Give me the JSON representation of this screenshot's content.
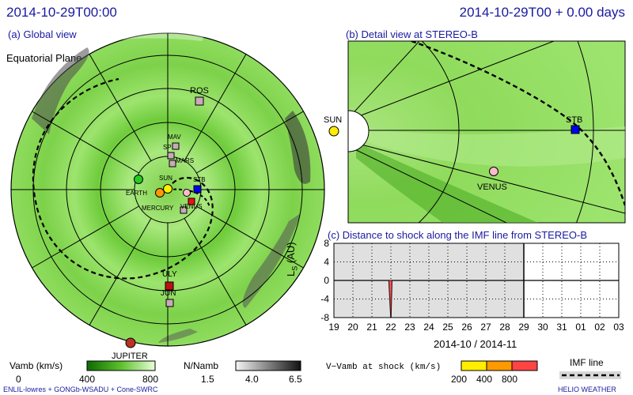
{
  "header": {
    "timestamp_left": "2014-10-29T00:00",
    "timestamp_right": "2014-10-29T00 + 0.00 days"
  },
  "panel_a": {
    "title": "(a) Global view",
    "plane_label": "Equatorial Plane",
    "objects": [
      {
        "label": "ROS",
        "color": "#c8aab8"
      },
      {
        "label": "MAV",
        "color": "#c8aab8"
      },
      {
        "label": "SP",
        "color": "#c8aab8"
      },
      {
        "label": "MARS",
        "color": "#c8aab8"
      },
      {
        "label": "SUN",
        "color": "#ffee00"
      },
      {
        "label": "STB",
        "color": "#0000ee"
      },
      {
        "label": "EARTH",
        "color": "#ff9900"
      },
      {
        "label": "MERCURY",
        "color": "#c8aab8"
      },
      {
        "label": "VENUS",
        "color": "#ffbbcc"
      },
      {
        "label": "ULY",
        "color": "#bb1111"
      },
      {
        "label": "JUN",
        "color": "#c8aab8"
      },
      {
        "label": "JUPITER",
        "color": "#bb3322"
      }
    ]
  },
  "panel_b": {
    "title": "(b) Detail view at STEREO-B",
    "sun_label": "SUN",
    "stb_label": "STB",
    "venus_label": "VENUS"
  },
  "panel_c": {
    "title": "(c) Distance to shock along the IMF line from STEREO-B",
    "ylabel": "L",
    "ylabel_sub": "S",
    "ylabel_unit": " (AU)",
    "date_label": "2014-10 / 2014-11"
  },
  "chart_data": {
    "type": "line",
    "title": "(c) Distance to shock along the IMF line from STEREO-B",
    "xlabel": "2014-10 / 2014-11",
    "ylabel": "LS (AU)",
    "x_ticks": [
      "19",
      "20",
      "21",
      "22",
      "23",
      "24",
      "25",
      "26",
      "27",
      "28",
      "29",
      "30",
      "31",
      "01",
      "02",
      "03"
    ],
    "y_ticks": [
      8,
      4,
      0,
      -4,
      -8
    ],
    "ylim": [
      -8,
      8
    ],
    "current_date": "29",
    "grid": true,
    "series": [
      {
        "values": [
          {
            "x": "21.9",
            "y": 0
          },
          {
            "x": "22.0",
            "y": -8
          },
          {
            "x": "22.05",
            "y": 0
          }
        ]
      }
    ]
  },
  "legend": {
    "vamb_title": "Vamb (km/s)",
    "vamb_ticks": [
      "0",
      "400",
      "800"
    ],
    "vamb_colors": [
      "#0d6b00",
      "#2f9a10",
      "#5cc12c",
      "#8fdb5c",
      "#bff09a",
      "#e8ffd8"
    ],
    "namb_title": "N/Namb",
    "namb_ticks": [
      "1.5",
      "4.0",
      "6.5"
    ],
    "namb_colors": [
      "#f2f2f2",
      "#c8c8c8",
      "#9a9a9a",
      "#6c6c6c",
      "#3e3e3e",
      "#111111"
    ],
    "shock_title": "V−Vamb at shock (km/s)",
    "shock_ticks": [
      "200",
      "400",
      "800"
    ],
    "shock_colors": [
      "#ffee00",
      "#ff9900",
      "#ff4444"
    ],
    "imf_title": "IMF line",
    "credit_left": "ENLIL-lowres + GONGb-WSADU + Cone-SWRC",
    "credit_right": "HELIO WEATHER"
  }
}
